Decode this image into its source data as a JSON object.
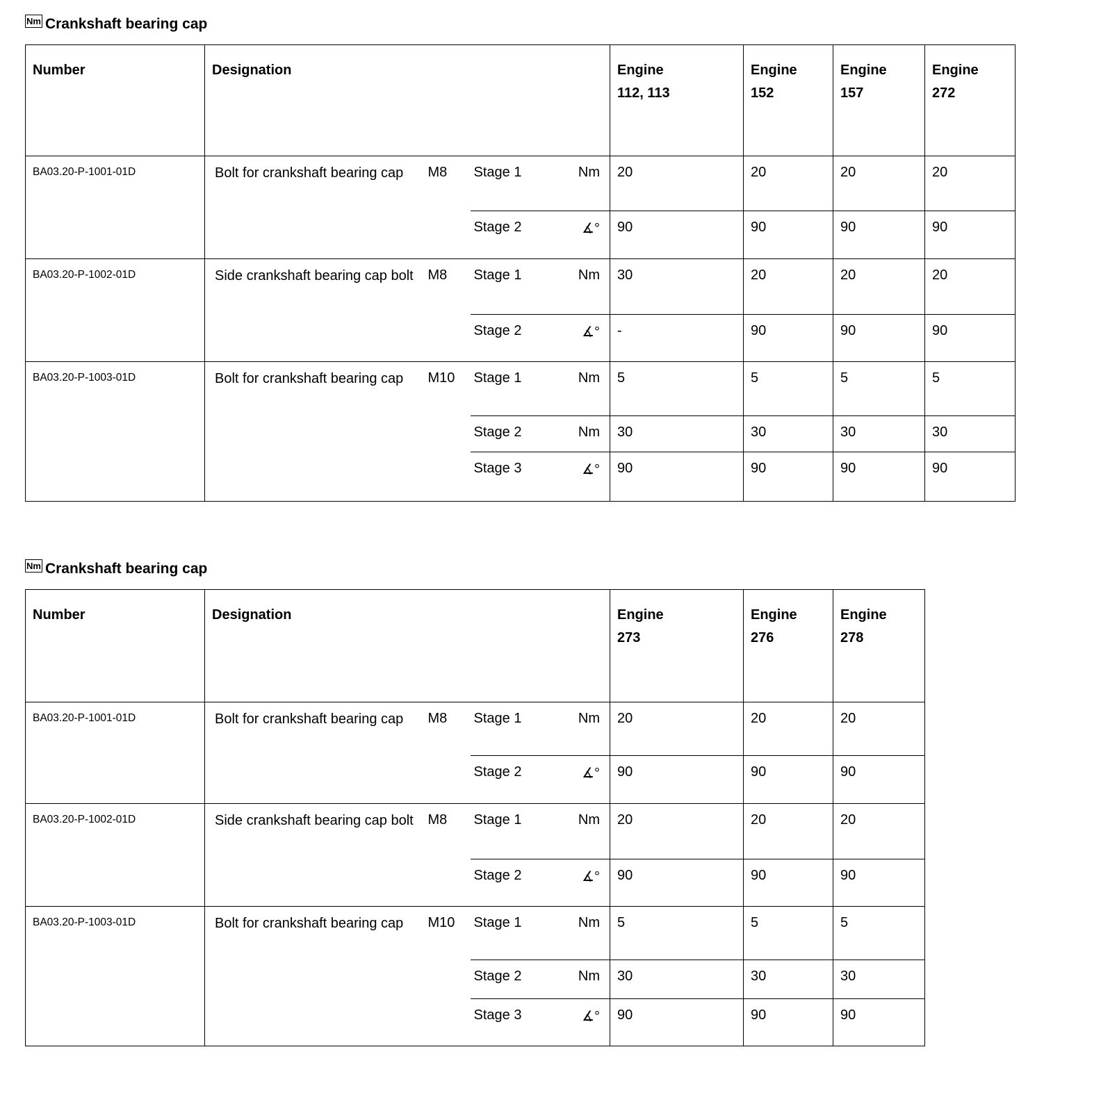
{
  "tables": [
    {
      "title": "Crankshaft bearing cap",
      "icon": "Nm",
      "headers": {
        "number": "Number",
        "designation": "Designation"
      },
      "engines": [
        {
          "label": "Engine",
          "code": "112, 113"
        },
        {
          "label": "Engine",
          "code": "152"
        },
        {
          "label": "Engine",
          "code": "157"
        },
        {
          "label": "Engine",
          "code": "272"
        }
      ],
      "rows": [
        {
          "number": "BA03.20-P-1001-01D",
          "designation": "Bolt for crankshaft bearing cap",
          "size": "M8",
          "stages": [
            {
              "label": "Stage 1",
              "unit": "Nm",
              "values": [
                "20",
                "20",
                "20",
                "20"
              ]
            },
            {
              "label": "Stage 2",
              "unit": "∡°",
              "values": [
                "90",
                "90",
                "90",
                "90"
              ]
            }
          ]
        },
        {
          "number": "BA03.20-P-1002-01D",
          "designation": "Side crankshaft bearing cap bolt",
          "size": "M8",
          "stages": [
            {
              "label": "Stage 1",
              "unit": "Nm",
              "values": [
                "30",
                "20",
                "20",
                "20"
              ]
            },
            {
              "label": "Stage 2",
              "unit": "∡°",
              "values": [
                "-",
                "90",
                "90",
                "90"
              ]
            }
          ]
        },
        {
          "number": "BA03.20-P-1003-01D",
          "designation": "Bolt for crankshaft bearing cap",
          "size": "M10",
          "stages": [
            {
              "label": "Stage 1",
              "unit": "Nm",
              "values": [
                "5",
                "5",
                "5",
                "5"
              ]
            },
            {
              "label": "Stage 2",
              "unit": "Nm",
              "values": [
                "30",
                "30",
                "30",
                "30"
              ]
            },
            {
              "label": "Stage 3",
              "unit": "∡°",
              "values": [
                "90",
                "90",
                "90",
                "90"
              ]
            }
          ]
        }
      ]
    },
    {
      "title": "Crankshaft bearing cap",
      "icon": "Nm",
      "headers": {
        "number": "Number",
        "designation": "Designation"
      },
      "engines": [
        {
          "label": "Engine",
          "code": "273"
        },
        {
          "label": "Engine",
          "code": "276"
        },
        {
          "label": "Engine",
          "code": "278"
        }
      ],
      "rows": [
        {
          "number": "BA03.20-P-1001-01D",
          "designation": "Bolt for crankshaft bearing cap",
          "size": "M8",
          "stages": [
            {
              "label": "Stage 1",
              "unit": "Nm",
              "values": [
                "20",
                "20",
                "20"
              ]
            },
            {
              "label": "Stage 2",
              "unit": "∡°",
              "values": [
                "90",
                "90",
                "90"
              ]
            }
          ]
        },
        {
          "number": "BA03.20-P-1002-01D",
          "designation": "Side crankshaft bearing cap bolt",
          "size": "M8",
          "stages": [
            {
              "label": "Stage 1",
              "unit": "Nm",
              "values": [
                "20",
                "20",
                "20"
              ]
            },
            {
              "label": "Stage 2",
              "unit": "∡°",
              "values": [
                "90",
                "90",
                "90"
              ]
            }
          ]
        },
        {
          "number": "BA03.20-P-1003-01D",
          "designation": "Bolt for crankshaft bearing cap",
          "size": "M10",
          "stages": [
            {
              "label": "Stage 1",
              "unit": "Nm",
              "values": [
                "5",
                "5",
                "5"
              ]
            },
            {
              "label": "Stage 2",
              "unit": "Nm",
              "values": [
                "30",
                "30",
                "30"
              ]
            },
            {
              "label": "Stage 3",
              "unit": "∡°",
              "values": [
                "90",
                "90",
                "90"
              ]
            }
          ]
        }
      ]
    }
  ]
}
